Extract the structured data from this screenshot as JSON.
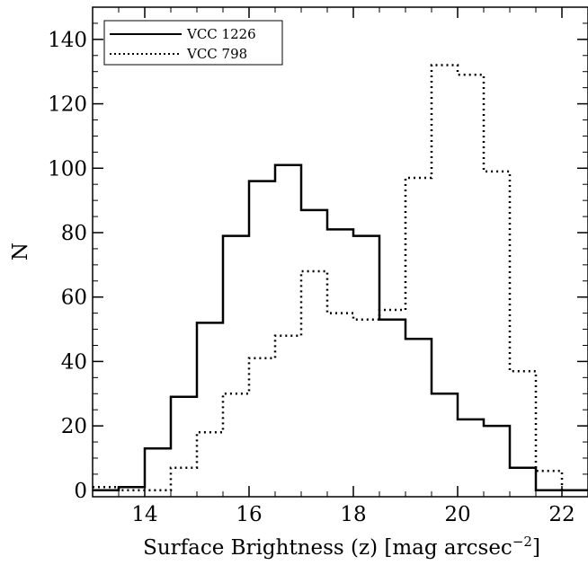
{
  "chart_data": {
    "type": "line",
    "step": "histogram",
    "xlabel": "Surface Brightness (z) [mag arcsec",
    "xlabel_sup": "−2",
    "xlabel_close": "]",
    "ylabel": "N",
    "xlim": [
      13.0,
      22.5
    ],
    "ylim": [
      -2,
      150
    ],
    "xticks": [
      14,
      16,
      18,
      20,
      22
    ],
    "xtick_labels": [
      "14",
      "16",
      "18",
      "20",
      "22"
    ],
    "yticks": [
      0,
      20,
      40,
      60,
      80,
      100,
      120,
      140
    ],
    "ytick_labels": [
      "0",
      "20",
      "40",
      "60",
      "80",
      "100",
      "120",
      "140"
    ],
    "minor_xtick_step": 0.5,
    "minor_ytick_step": 5,
    "grid": false,
    "legend": "top-left",
    "bin_edges": [
      13.0,
      13.5,
      14.0,
      14.5,
      15.0,
      15.5,
      16.0,
      16.5,
      17.0,
      17.5,
      18.0,
      18.5,
      19.0,
      19.5,
      20.0,
      20.5,
      21.0,
      21.5,
      22.0,
      22.5
    ],
    "series": [
      {
        "name": "VCC 1226",
        "style": "solid",
        "color": "#000000",
        "values": [
          0,
          1,
          13,
          29,
          52,
          79,
          96,
          101,
          87,
          81,
          79,
          53,
          47,
          30,
          22,
          20,
          7,
          0,
          0
        ]
      },
      {
        "name": "VCC 798",
        "style": "dotted",
        "color": "#000000",
        "values": [
          1,
          0,
          0,
          7,
          18,
          30,
          41,
          48,
          68,
          55,
          53,
          56,
          97,
          132,
          129,
          99,
          37,
          6,
          0
        ]
      }
    ]
  }
}
